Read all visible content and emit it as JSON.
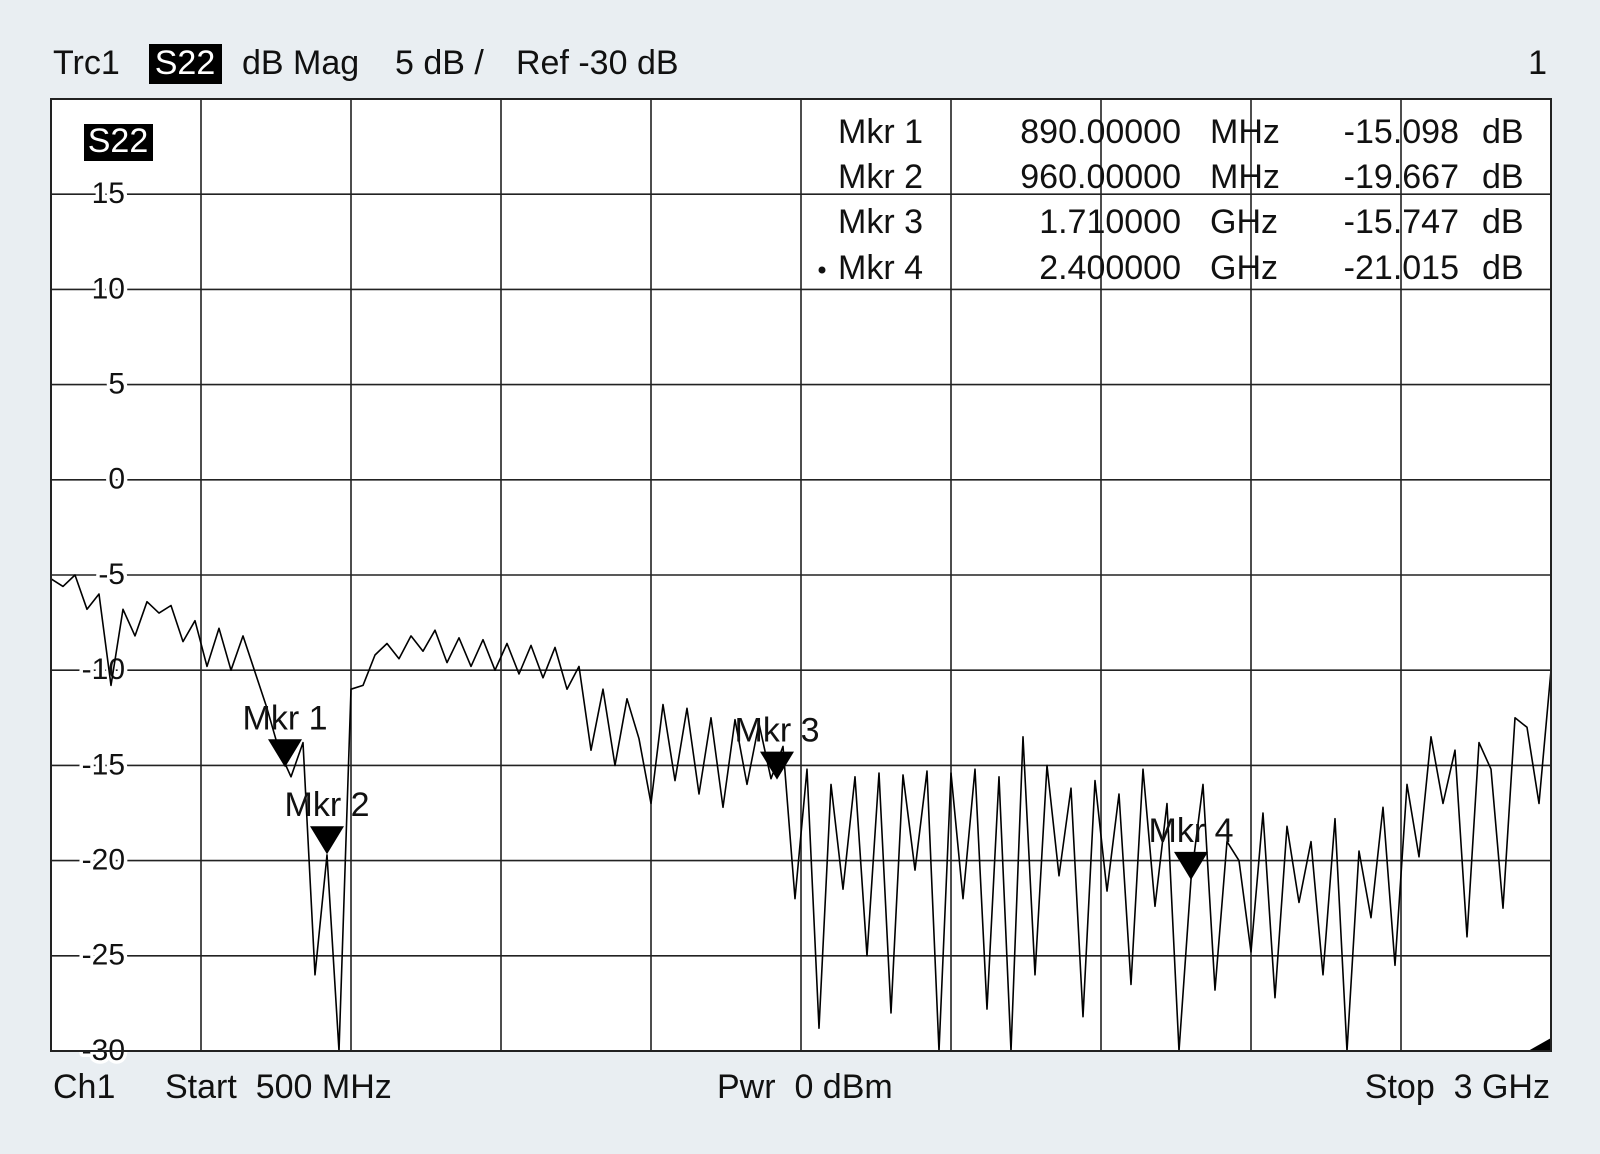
{
  "chart_data": {
    "type": "line",
    "trace": "Trc1",
    "parameter": "S22",
    "format": "dB Mag",
    "scale": "5 dB /",
    "reference": "Ref -30 dB",
    "window": "1",
    "channel": "Ch1",
    "start": "Start  500 MHz",
    "power": "Pwr  0 dBm",
    "stop": "Stop  3 GHz",
    "xlim": [
      500,
      3000
    ],
    "x_divisions": 10,
    "ylim": [
      -30,
      20
    ],
    "yticks": [
      -30,
      -25,
      -20,
      -15,
      -10,
      -5,
      0,
      5,
      10,
      15
    ],
    "grid": true,
    "series": [
      {
        "name": "S22",
        "color": "#000000",
        "x": [
          500,
          520,
          540,
          560,
          580,
          600,
          620,
          640,
          660,
          680,
          700,
          720,
          740,
          760,
          780,
          800,
          820,
          840,
          860,
          880,
          900,
          920,
          940,
          960,
          980,
          1000,
          1020,
          1040,
          1060,
          1080,
          1100,
          1120,
          1140,
          1160,
          1180,
          1200,
          1220,
          1240,
          1260,
          1280,
          1300,
          1320,
          1340,
          1360,
          1380,
          1400,
          1420,
          1440,
          1460,
          1480,
          1500,
          1520,
          1540,
          1560,
          1580,
          1600,
          1620,
          1640,
          1660,
          1680,
          1700,
          1720,
          1740,
          1760,
          1780,
          1800,
          1820,
          1840,
          1860,
          1880,
          1900,
          1920,
          1940,
          1960,
          1980,
          2000,
          2020,
          2040,
          2060,
          2080,
          2100,
          2120,
          2140,
          2160,
          2180,
          2200,
          2220,
          2240,
          2260,
          2280,
          2300,
          2320,
          2340,
          2360,
          2380,
          2400,
          2420,
          2440,
          2460,
          2480,
          2500,
          2520,
          2540,
          2560,
          2580,
          2600,
          2620,
          2640,
          2660,
          2680,
          2700,
          2720,
          2740,
          2760,
          2780,
          2800,
          2820,
          2840,
          2860,
          2880,
          2900,
          2920,
          2940,
          2960,
          2980,
          3000
        ],
        "values": [
          -5.2,
          -5.6,
          -5.0,
          -6.8,
          -6.0,
          -10.8,
          -6.8,
          -8.2,
          -6.4,
          -7.0,
          -6.6,
          -8.5,
          -7.4,
          -9.8,
          -7.8,
          -10.0,
          -8.2,
          -10.1,
          -12.0,
          -14.2,
          -15.6,
          -13.8,
          -26.0,
          -19.7,
          -30.0,
          -11.0,
          -10.8,
          -9.2,
          -8.6,
          -9.4,
          -8.2,
          -9.0,
          -7.9,
          -9.6,
          -8.3,
          -9.8,
          -8.4,
          -10.0,
          -8.6,
          -10.2,
          -8.7,
          -10.4,
          -8.8,
          -11.0,
          -9.8,
          -14.2,
          -11.0,
          -15.0,
          -11.5,
          -13.6,
          -17.0,
          -11.8,
          -15.8,
          -12.0,
          -16.5,
          -12.5,
          -17.2,
          -12.6,
          -16.0,
          -12.8,
          -15.7,
          -14.0,
          -22.0,
          -15.2,
          -28.8,
          -16.0,
          -21.5,
          -15.6,
          -25.0,
          -15.4,
          -28.0,
          -15.5,
          -20.5,
          -15.3,
          -30.0,
          -15.4,
          -22.0,
          -15.2,
          -27.8,
          -15.6,
          -30.0,
          -13.5,
          -26.0,
          -15.0,
          -20.8,
          -16.2,
          -28.2,
          -15.8,
          -21.6,
          -16.5,
          -26.5,
          -15.2,
          -22.4,
          -17.0,
          -30.0,
          -21.0,
          -16.0,
          -26.8,
          -19.0,
          -20.0,
          -24.8,
          -17.5,
          -27.2,
          -18.2,
          -22.2,
          -19.0,
          -26.0,
          -17.8,
          -30.0,
          -19.5,
          -23.0,
          -17.2,
          -25.5,
          -16.0,
          -19.8,
          -13.5,
          -17.0,
          -14.2,
          -24.0,
          -13.8,
          -15.2,
          -22.5,
          -12.5,
          -13.0,
          -17.0,
          -10.0
        ]
      }
    ],
    "markers": [
      {
        "name": "Mkr 1",
        "x": 890,
        "x_label": "890.00000",
        "x_unit": "MHz",
        "y": -15.098,
        "y_unit": "dB",
        "active": false
      },
      {
        "name": "Mkr 2",
        "x": 960,
        "x_label": "960.00000",
        "x_unit": "MHz",
        "y": -19.667,
        "y_unit": "dB",
        "active": false
      },
      {
        "name": "Mkr 3",
        "x": 1710,
        "x_label": "1.710000",
        "x_unit": "GHz",
        "y": -15.747,
        "y_unit": "dB",
        "active": false
      },
      {
        "name": "Mkr 4",
        "x": 2400,
        "x_label": "2.400000",
        "x_unit": "GHz",
        "y": -21.015,
        "y_unit": "dB",
        "active": true
      }
    ]
  }
}
